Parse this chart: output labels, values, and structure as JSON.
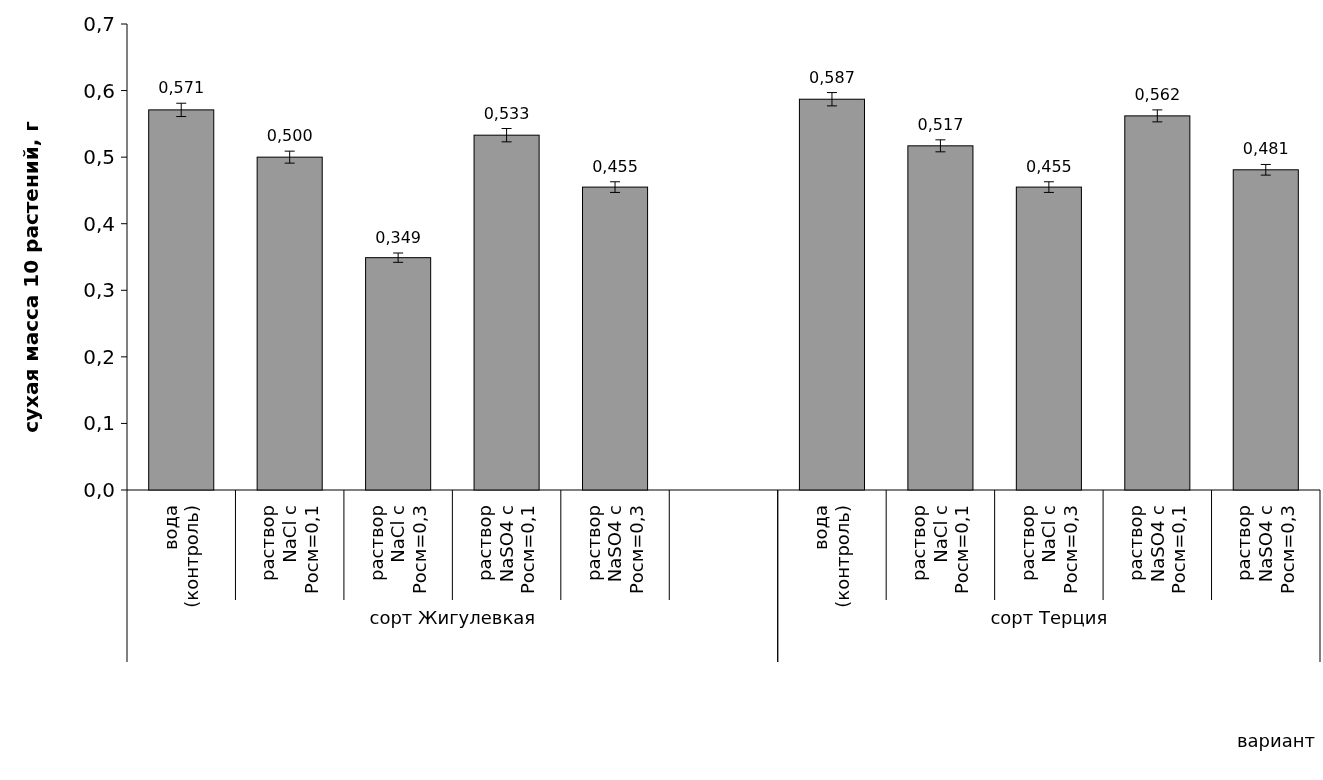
{
  "chart_data": {
    "type": "bar",
    "ylabel": "сухая масса 10 растений, г",
    "categories": [
      "вода (контроль)",
      "раствор NaCl с Росм=0,1",
      "раствор NaCl с Росм=0,3",
      "раствор NaSO4 с Росм=0,1",
      "раствор NaSO4 с Росм=0,3",
      null,
      "вода (контроль)",
      "раствор NaCl с Росм=0,1",
      "раствор NaCl с Росм=0,3",
      "раствор NaSO4 с Росм=0,1",
      "раствор NaSO4 с Росм=0,3"
    ],
    "values": [
      0.571,
      0.5,
      0.349,
      0.533,
      0.455,
      null,
      0.587,
      0.517,
      0.455,
      0.562,
      0.481
    ],
    "errors": [
      0.01,
      0.009,
      0.007,
      0.01,
      0.008,
      null,
      0.01,
      0.009,
      0.008,
      0.009,
      0.008
    ],
    "value_labels": [
      "0,571",
      "0,500",
      "0,349",
      "0,533",
      "0,455",
      null,
      "0,587",
      "0,517",
      "0,455",
      "0,562",
      "0,481"
    ],
    "color": "#999999",
    "ylim": [
      0,
      0.7
    ],
    "yticks": [
      {
        "value": 0,
        "label": "0,0"
      },
      {
        "value": 0.1,
        "label": "0,1"
      },
      {
        "value": 0.2,
        "label": "0,2"
      },
      {
        "value": 0.3,
        "label": "0,3"
      },
      {
        "value": 0.4,
        "label": "0,4"
      },
      {
        "value": 0.5,
        "label": "0,5"
      },
      {
        "value": 0.6,
        "label": "0,6"
      },
      {
        "value": 0.7,
        "label": "0,7"
      }
    ],
    "annotations": [
      "сорт Жигулевкая",
      "сорт Терция",
      "вариант"
    ],
    "grid": false
  }
}
